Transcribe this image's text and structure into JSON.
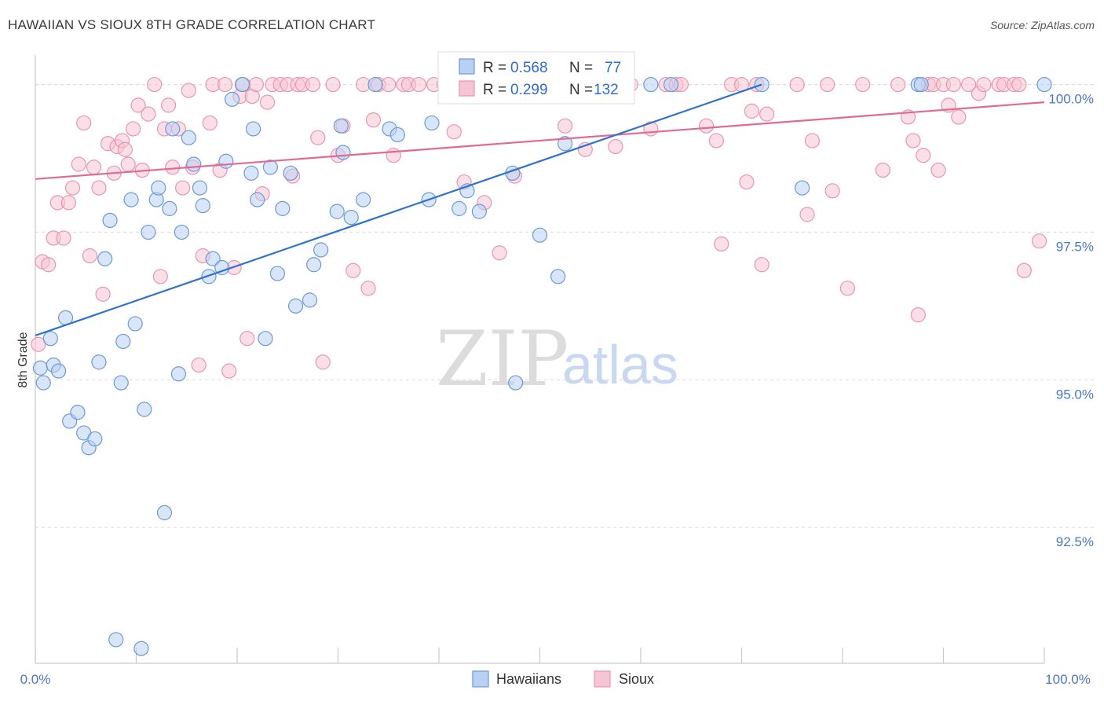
{
  "title": "HAWAIIAN VS SIOUX 8TH GRADE CORRELATION CHART",
  "source": "Source: ZipAtlas.com",
  "colors": {
    "hawaiian_fill": "#b9d0f2",
    "hawaiian_stroke": "#6a9ad9",
    "hawaiian_line": "#2f72d0",
    "sioux_fill": "#f7c4d4",
    "sioux_stroke": "#e995b2",
    "sioux_line": "#e06a93",
    "axis_text": "#4a78c8",
    "grid": "#d9d9d9"
  },
  "legend": {
    "rows": [
      {
        "r_label": "R = ",
        "r_value": "0.568",
        "n_label": "N = ",
        "n_value": "77",
        "series": "hawaiians"
      },
      {
        "r_label": "R = ",
        "r_value": "0.299",
        "n_label": "N = ",
        "n_value": "132",
        "series": "sioux"
      }
    ]
  },
  "watermark": {
    "zip": "ZIP",
    "atlas": "atlas"
  },
  "chart_data": {
    "type": "scatter",
    "title": "HAWAIIAN VS SIOUX 8TH GRADE CORRELATION CHART",
    "xlabel": "",
    "ylabel": "8th Grade",
    "xlim": [
      0,
      100
    ],
    "ylim": [
      90.2,
      100.5
    ],
    "x_tick_labels": [
      "0.0%",
      "100.0%"
    ],
    "y_ticks": [
      92.5,
      95.0,
      97.5,
      100.0
    ],
    "y_tick_labels": [
      "92.5%",
      "95.0%",
      "97.5%",
      "100.0%"
    ],
    "legend_position": "bottom-center",
    "series": [
      {
        "name": "Hawaiians",
        "r": 0.568,
        "n": 77,
        "trend": {
          "x0": 0,
          "y0": 95.75,
          "x1": 72,
          "y1": 100.0
        },
        "points": [
          [
            0.5,
            95.2
          ],
          [
            0.8,
            94.95
          ],
          [
            1.5,
            95.7
          ],
          [
            1.8,
            95.25
          ],
          [
            2.3,
            95.15
          ],
          [
            3,
            96.05
          ],
          [
            3.4,
            94.3
          ],
          [
            4.2,
            94.45
          ],
          [
            4.8,
            94.1
          ],
          [
            5.3,
            93.85
          ],
          [
            5.9,
            94.0
          ],
          [
            6.3,
            95.3
          ],
          [
            6.9,
            97.05
          ],
          [
            7.4,
            97.7
          ],
          [
            8.0,
            90.6
          ],
          [
            8.5,
            94.95
          ],
          [
            8.7,
            95.65
          ],
          [
            9.5,
            98.05
          ],
          [
            9.9,
            95.95
          ],
          [
            10.5,
            90.45
          ],
          [
            10.8,
            94.5
          ],
          [
            11.2,
            97.5
          ],
          [
            12.0,
            98.05
          ],
          [
            12.2,
            98.25
          ],
          [
            12.8,
            92.75
          ],
          [
            13.3,
            97.9
          ],
          [
            13.6,
            99.25
          ],
          [
            14.2,
            95.1
          ],
          [
            14.5,
            97.5
          ],
          [
            15.2,
            99.1
          ],
          [
            15.7,
            98.65
          ],
          [
            16.3,
            98.25
          ],
          [
            16.6,
            97.95
          ],
          [
            17.2,
            96.75
          ],
          [
            17.6,
            97.05
          ],
          [
            18.5,
            96.9
          ],
          [
            18.9,
            98.7
          ],
          [
            19.5,
            99.75
          ],
          [
            20.5,
            100.0
          ],
          [
            21.4,
            98.5
          ],
          [
            21.6,
            99.25
          ],
          [
            22.0,
            98.05
          ],
          [
            22.8,
            95.7
          ],
          [
            23.3,
            98.6
          ],
          [
            24.0,
            96.8
          ],
          [
            24.5,
            97.9
          ],
          [
            25.3,
            98.5
          ],
          [
            25.8,
            96.25
          ],
          [
            27.2,
            96.35
          ],
          [
            27.6,
            96.95
          ],
          [
            28.3,
            97.2
          ],
          [
            29.9,
            97.85
          ],
          [
            30.3,
            99.3
          ],
          [
            30.5,
            98.85
          ],
          [
            31.3,
            97.75
          ],
          [
            32.5,
            98.05
          ],
          [
            33.7,
            100.0
          ],
          [
            35.1,
            99.25
          ],
          [
            35.9,
            99.15
          ],
          [
            39.0,
            98.05
          ],
          [
            39.3,
            99.35
          ],
          [
            42.0,
            97.9
          ],
          [
            42.8,
            98.2
          ],
          [
            44.0,
            97.85
          ],
          [
            47.3,
            98.5
          ],
          [
            47.6,
            94.95
          ],
          [
            50.0,
            97.45
          ],
          [
            51.8,
            96.75
          ],
          [
            52.5,
            99.0
          ],
          [
            55.0,
            100.0
          ],
          [
            61.0,
            100.0
          ],
          [
            63.0,
            100.0
          ],
          [
            72.0,
            100.0
          ],
          [
            76.0,
            98.25
          ],
          [
            87.5,
            100.0
          ],
          [
            87.8,
            100.0
          ],
          [
            100.0,
            100.0
          ]
        ]
      },
      {
        "name": "Sioux",
        "r": 0.299,
        "n": 132,
        "trend": {
          "x0": 0,
          "y0": 98.4,
          "x1": 100,
          "y1": 99.7
        },
        "points": [
          [
            0.3,
            95.6
          ],
          [
            0.7,
            97.0
          ],
          [
            1.3,
            96.95
          ],
          [
            1.8,
            97.4
          ],
          [
            2.2,
            98.0
          ],
          [
            2.8,
            97.4
          ],
          [
            3.3,
            98.0
          ],
          [
            3.7,
            98.25
          ],
          [
            4.3,
            98.65
          ],
          [
            4.8,
            99.35
          ],
          [
            5.4,
            97.1
          ],
          [
            5.8,
            98.6
          ],
          [
            6.3,
            98.25
          ],
          [
            6.7,
            96.45
          ],
          [
            7.2,
            99.0
          ],
          [
            7.8,
            98.5
          ],
          [
            8.1,
            98.95
          ],
          [
            8.6,
            99.05
          ],
          [
            8.9,
            98.9
          ],
          [
            9.2,
            98.65
          ],
          [
            9.7,
            99.25
          ],
          [
            10.2,
            99.65
          ],
          [
            10.6,
            98.55
          ],
          [
            11.2,
            99.5
          ],
          [
            11.8,
            100.0
          ],
          [
            12.4,
            96.75
          ],
          [
            12.8,
            99.25
          ],
          [
            13.2,
            99.65
          ],
          [
            13.6,
            98.6
          ],
          [
            14.2,
            99.25
          ],
          [
            14.6,
            98.25
          ],
          [
            15.2,
            99.9
          ],
          [
            15.6,
            98.6
          ],
          [
            16.2,
            95.25
          ],
          [
            16.6,
            97.1
          ],
          [
            17.3,
            99.35
          ],
          [
            17.6,
            100.0
          ],
          [
            18.3,
            98.55
          ],
          [
            18.8,
            100.0
          ],
          [
            19.2,
            95.15
          ],
          [
            19.7,
            96.9
          ],
          [
            20.3,
            99.8
          ],
          [
            20.6,
            100.0
          ],
          [
            21.0,
            95.7
          ],
          [
            21.5,
            99.8
          ],
          [
            21.9,
            100.0
          ],
          [
            22.5,
            98.15
          ],
          [
            23.0,
            99.7
          ],
          [
            23.5,
            100.0
          ],
          [
            24.3,
            100.0
          ],
          [
            25.0,
            100.0
          ],
          [
            25.5,
            98.45
          ],
          [
            26.0,
            100.0
          ],
          [
            26.5,
            100.0
          ],
          [
            27.5,
            100.0
          ],
          [
            28.0,
            99.1
          ],
          [
            28.5,
            95.3
          ],
          [
            29.5,
            100.0
          ],
          [
            30.0,
            98.8
          ],
          [
            30.5,
            99.3
          ],
          [
            31.5,
            96.85
          ],
          [
            32.5,
            100.0
          ],
          [
            33.0,
            96.55
          ],
          [
            33.5,
            99.4
          ],
          [
            34.0,
            100.0
          ],
          [
            35.0,
            100.0
          ],
          [
            35.5,
            98.8
          ],
          [
            36.5,
            100.0
          ],
          [
            37.0,
            100.0
          ],
          [
            38.0,
            100.0
          ],
          [
            39.5,
            100.0
          ],
          [
            40.5,
            100.0
          ],
          [
            41.5,
            99.2
          ],
          [
            42.5,
            98.35
          ],
          [
            43.5,
            100.0
          ],
          [
            44.5,
            98.0
          ],
          [
            45.5,
            100.0
          ],
          [
            46.0,
            97.15
          ],
          [
            47.5,
            98.45
          ],
          [
            48.5,
            100.0
          ],
          [
            50.5,
            100.0
          ],
          [
            51.5,
            100.0
          ],
          [
            52.5,
            99.3
          ],
          [
            53.5,
            100.0
          ],
          [
            54.5,
            98.9
          ],
          [
            55.5,
            100.0
          ],
          [
            56.5,
            100.0
          ],
          [
            57.5,
            98.95
          ],
          [
            59.0,
            100.0
          ],
          [
            61.0,
            99.25
          ],
          [
            62.5,
            100.0
          ],
          [
            63.5,
            100.0
          ],
          [
            64.0,
            100.0
          ],
          [
            66.5,
            99.3
          ],
          [
            67.5,
            99.05
          ],
          [
            68.0,
            97.3
          ],
          [
            69.0,
            100.0
          ],
          [
            70.0,
            100.0
          ],
          [
            70.5,
            98.35
          ],
          [
            71.0,
            99.55
          ],
          [
            71.5,
            100.0
          ],
          [
            72.0,
            96.95
          ],
          [
            72.5,
            99.5
          ],
          [
            75.5,
            100.0
          ],
          [
            76.5,
            97.8
          ],
          [
            77.0,
            99.05
          ],
          [
            78.5,
            100.0
          ],
          [
            79.0,
            98.2
          ],
          [
            80.5,
            96.55
          ],
          [
            82.0,
            100.0
          ],
          [
            84.0,
            98.55
          ],
          [
            85.5,
            100.0
          ],
          [
            86.5,
            99.45
          ],
          [
            87.0,
            99.05
          ],
          [
            87.5,
            96.1
          ],
          [
            88.0,
            98.8
          ],
          [
            88.5,
            100.0
          ],
          [
            89.0,
            100.0
          ],
          [
            89.5,
            98.55
          ],
          [
            90.0,
            100.0
          ],
          [
            90.5,
            99.65
          ],
          [
            91.0,
            100.0
          ],
          [
            91.5,
            99.45
          ],
          [
            92.5,
            100.0
          ],
          [
            93.5,
            99.85
          ],
          [
            94.0,
            100.0
          ],
          [
            95.5,
            100.0
          ],
          [
            96.0,
            100.0
          ],
          [
            97.0,
            100.0
          ],
          [
            97.5,
            100.0
          ],
          [
            98.0,
            96.85
          ],
          [
            99.5,
            97.35
          ]
        ]
      }
    ]
  },
  "bottom_legend": [
    {
      "label": "Hawaiians",
      "series": "hawaiians"
    },
    {
      "label": "Sioux",
      "series": "sioux"
    }
  ]
}
